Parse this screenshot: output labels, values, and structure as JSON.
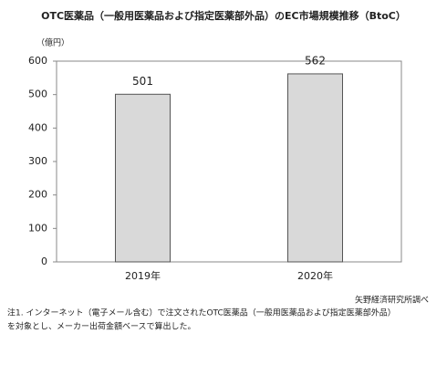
{
  "chart_data": {
    "type": "bar",
    "title": "OTC医薬品（一般用医薬品および指定医薬部外品）のEC市場規模推移（BtoC）",
    "y_unit": "（億円）",
    "categories": [
      "2019年",
      "2020年"
    ],
    "values": [
      501,
      562
    ],
    "color": "#d9d9d9",
    "ylim": [
      0,
      600
    ],
    "yticks": [
      0,
      100,
      200,
      300,
      400,
      500,
      600
    ],
    "grid": false,
    "source": "矢野経済研究所調べ",
    "notes": [
      "注1. インターネット（電子メール含む）で注文されたOTC医薬品（一般用医薬品および指定医薬部外品）",
      "を対象とし、メーカー出荷金額ベースで算出した。"
    ]
  }
}
